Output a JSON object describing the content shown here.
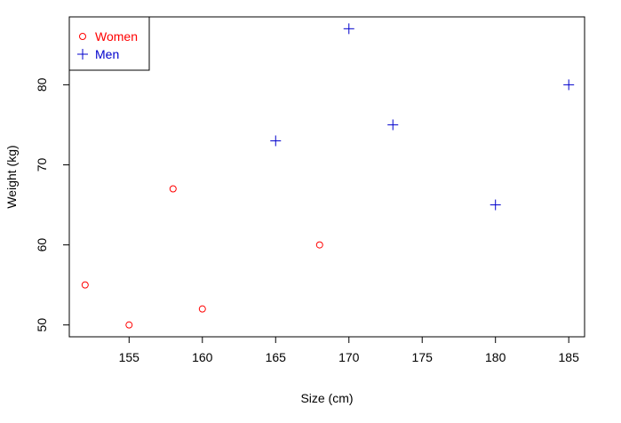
{
  "chart_data": {
    "type": "scatter",
    "xlabel": "Size (cm)",
    "ylabel": "Weight (kg)",
    "xlim": [
      150.92,
      186.08
    ],
    "ylim": [
      48.52,
      88.48
    ],
    "xticks": [
      155,
      160,
      165,
      170,
      175,
      180,
      185
    ],
    "yticks": [
      50,
      60,
      70,
      80
    ],
    "xtick_labels": [
      "155",
      "160",
      "165",
      "170",
      "175",
      "180",
      "185"
    ],
    "ytick_labels": [
      "50",
      "60",
      "70",
      "80"
    ],
    "legend_position": "top-left",
    "series": [
      {
        "name": "Women",
        "marker": "circle",
        "color": "#ff0000",
        "points": [
          {
            "x": 152,
            "y": 55
          },
          {
            "x": 155,
            "y": 50
          },
          {
            "x": 158,
            "y": 67
          },
          {
            "x": 160,
            "y": 52
          },
          {
            "x": 168,
            "y": 60
          }
        ]
      },
      {
        "name": "Men",
        "marker": "plus",
        "color": "#0000cc",
        "points": [
          {
            "x": 165,
            "y": 73
          },
          {
            "x": 170,
            "y": 87
          },
          {
            "x": 173,
            "y": 75
          },
          {
            "x": 180,
            "y": 65
          },
          {
            "x": 185,
            "y": 80
          }
        ]
      }
    ]
  }
}
